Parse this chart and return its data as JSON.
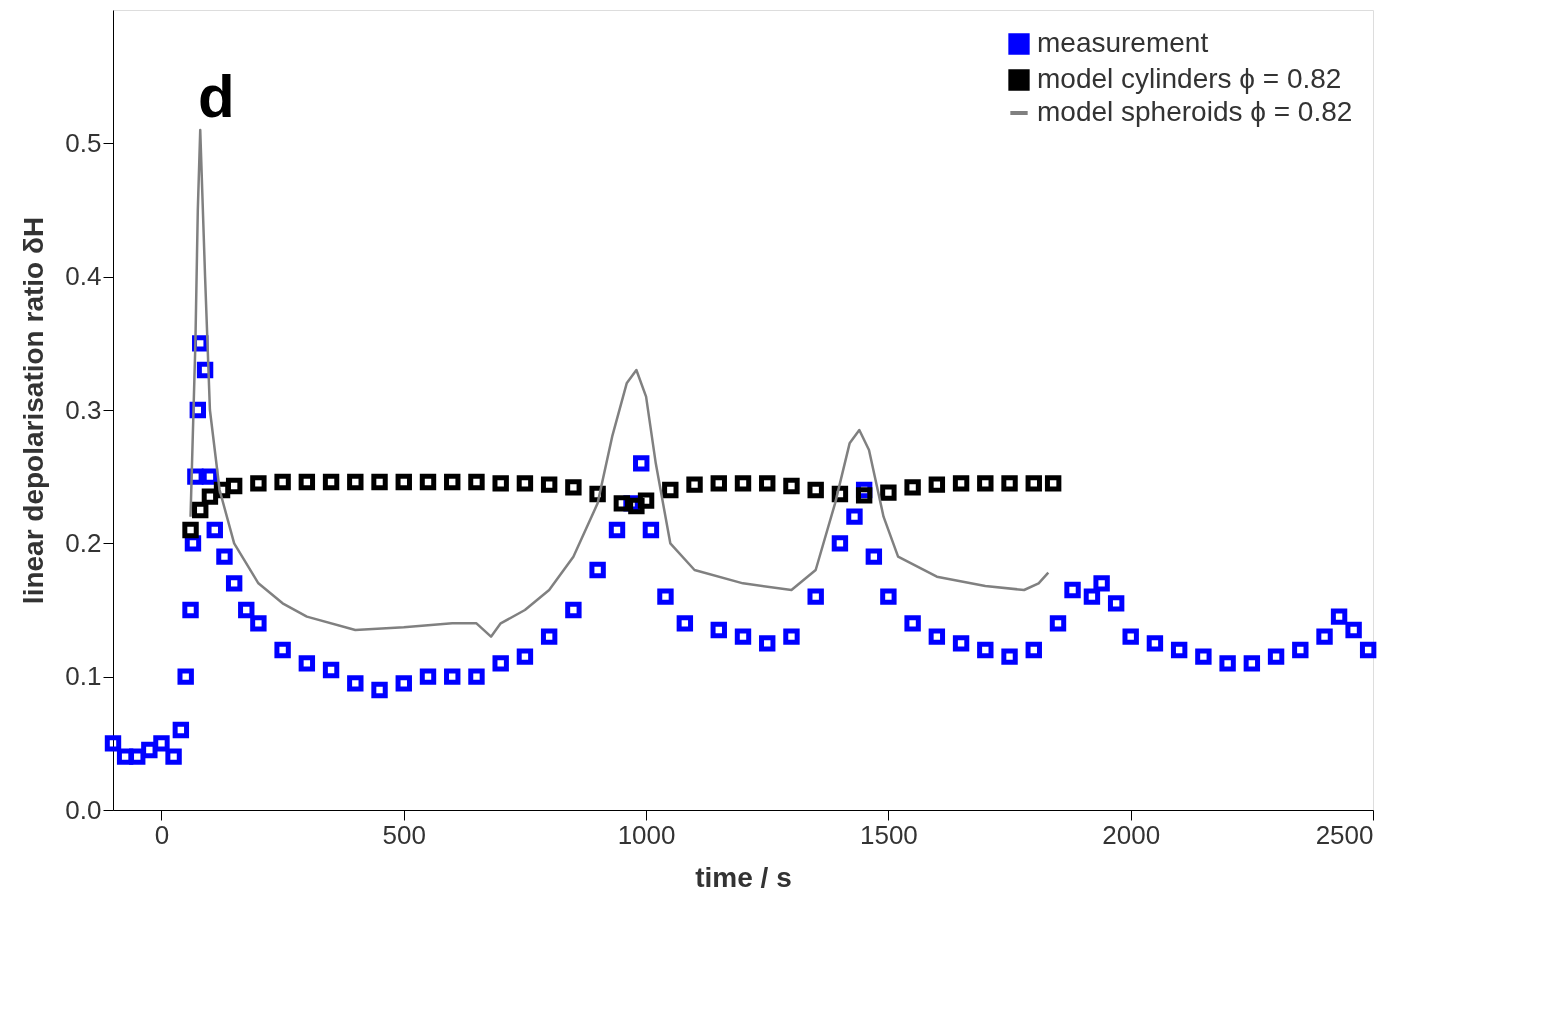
{
  "chart_data": {
    "type": "scatter",
    "xlabel": "time / s",
    "ylabel": "linear depolarisation ratio δH",
    "xlim": [
      -100,
      2500
    ],
    "ylim": [
      0,
      0.6
    ],
    "xticks": [
      0,
      500,
      1000,
      1500,
      2000,
      2500
    ],
    "yticks": [
      {
        "value": 0,
        "label": "0.0"
      },
      0.1,
      0.2,
      0.3,
      0.4,
      0.5
    ],
    "grid": false,
    "legend": "top right",
    "annotations": [
      "d"
    ],
    "series": [
      {
        "name": "measurement",
        "marker": "square",
        "color": "#0000ff",
        "x": [
          -100,
          -75,
          -50,
          -25,
          0,
          25,
          40,
          50,
          60,
          65,
          70,
          75,
          80,
          90,
          100,
          110,
          130,
          150,
          175,
          200,
          250,
          300,
          350,
          400,
          450,
          500,
          550,
          600,
          650,
          700,
          750,
          800,
          850,
          900,
          940,
          970,
          990,
          1010,
          1040,
          1080,
          1150,
          1200,
          1250,
          1300,
          1350,
          1400,
          1430,
          1450,
          1470,
          1500,
          1550,
          1600,
          1650,
          1700,
          1750,
          1800,
          1850,
          1880,
          1920,
          1940,
          1970,
          2000,
          2050,
          2100,
          2150,
          2200,
          2250,
          2300,
          2350,
          2400,
          2430,
          2460,
          2490
        ],
        "values": [
          0.05,
          0.04,
          0.04,
          0.045,
          0.05,
          0.04,
          0.06,
          0.1,
          0.15,
          0.2,
          0.25,
          0.3,
          0.35,
          0.33,
          0.25,
          0.21,
          0.19,
          0.17,
          0.15,
          0.14,
          0.12,
          0.11,
          0.105,
          0.095,
          0.09,
          0.095,
          0.1,
          0.1,
          0.1,
          0.11,
          0.115,
          0.13,
          0.15,
          0.18,
          0.21,
          0.23,
          0.26,
          0.21,
          0.16,
          0.14,
          0.135,
          0.13,
          0.125,
          0.13,
          0.16,
          0.2,
          0.22,
          0.24,
          0.19,
          0.16,
          0.14,
          0.13,
          0.125,
          0.12,
          0.115,
          0.12,
          0.14,
          0.165,
          0.16,
          0.17,
          0.155,
          0.13,
          0.125,
          0.12,
          0.115,
          0.11,
          0.11,
          0.115,
          0.12,
          0.13,
          0.145,
          0.135,
          0.12
        ]
      },
      {
        "name": "model cylinders ϕ = 0.82",
        "marker": "square",
        "color": "#000000",
        "x": [
          60,
          80,
          100,
          125,
          150,
          200,
          250,
          300,
          350,
          400,
          450,
          500,
          550,
          600,
          650,
          700,
          750,
          800,
          850,
          900,
          950,
          980,
          1000,
          1050,
          1100,
          1150,
          1200,
          1250,
          1300,
          1350,
          1400,
          1450,
          1500,
          1550,
          1600,
          1650,
          1700,
          1750,
          1800,
          1840
        ],
        "values": [
          0.21,
          0.225,
          0.235,
          0.24,
          0.243,
          0.245,
          0.246,
          0.246,
          0.246,
          0.246,
          0.246,
          0.246,
          0.246,
          0.246,
          0.246,
          0.245,
          0.245,
          0.244,
          0.242,
          0.237,
          0.23,
          0.228,
          0.232,
          0.24,
          0.244,
          0.245,
          0.245,
          0.245,
          0.243,
          0.24,
          0.237,
          0.236,
          0.238,
          0.242,
          0.244,
          0.245,
          0.245,
          0.245,
          0.245,
          0.245
        ]
      },
      {
        "name": "model spheroids ϕ = 0.82",
        "type": "line",
        "marker": "none",
        "line_style": "solid",
        "color": "#808080",
        "x": [
          60,
          70,
          75,
          80,
          90,
          100,
          120,
          150,
          200,
          250,
          300,
          400,
          500,
          600,
          650,
          680,
          700,
          750,
          800,
          850,
          900,
          930,
          960,
          980,
          1000,
          1020,
          1050,
          1100,
          1200,
          1300,
          1350,
          1390,
          1420,
          1440,
          1460,
          1490,
          1520,
          1600,
          1700,
          1780,
          1810,
          1830
        ],
        "values": [
          0.22,
          0.35,
          0.45,
          0.51,
          0.4,
          0.3,
          0.24,
          0.2,
          0.17,
          0.155,
          0.145,
          0.135,
          0.137,
          0.14,
          0.14,
          0.13,
          0.14,
          0.15,
          0.165,
          0.19,
          0.23,
          0.28,
          0.32,
          0.33,
          0.31,
          0.26,
          0.2,
          0.18,
          0.17,
          0.165,
          0.18,
          0.23,
          0.275,
          0.285,
          0.27,
          0.22,
          0.19,
          0.175,
          0.168,
          0.165,
          0.17,
          0.178
        ]
      }
    ]
  }
}
